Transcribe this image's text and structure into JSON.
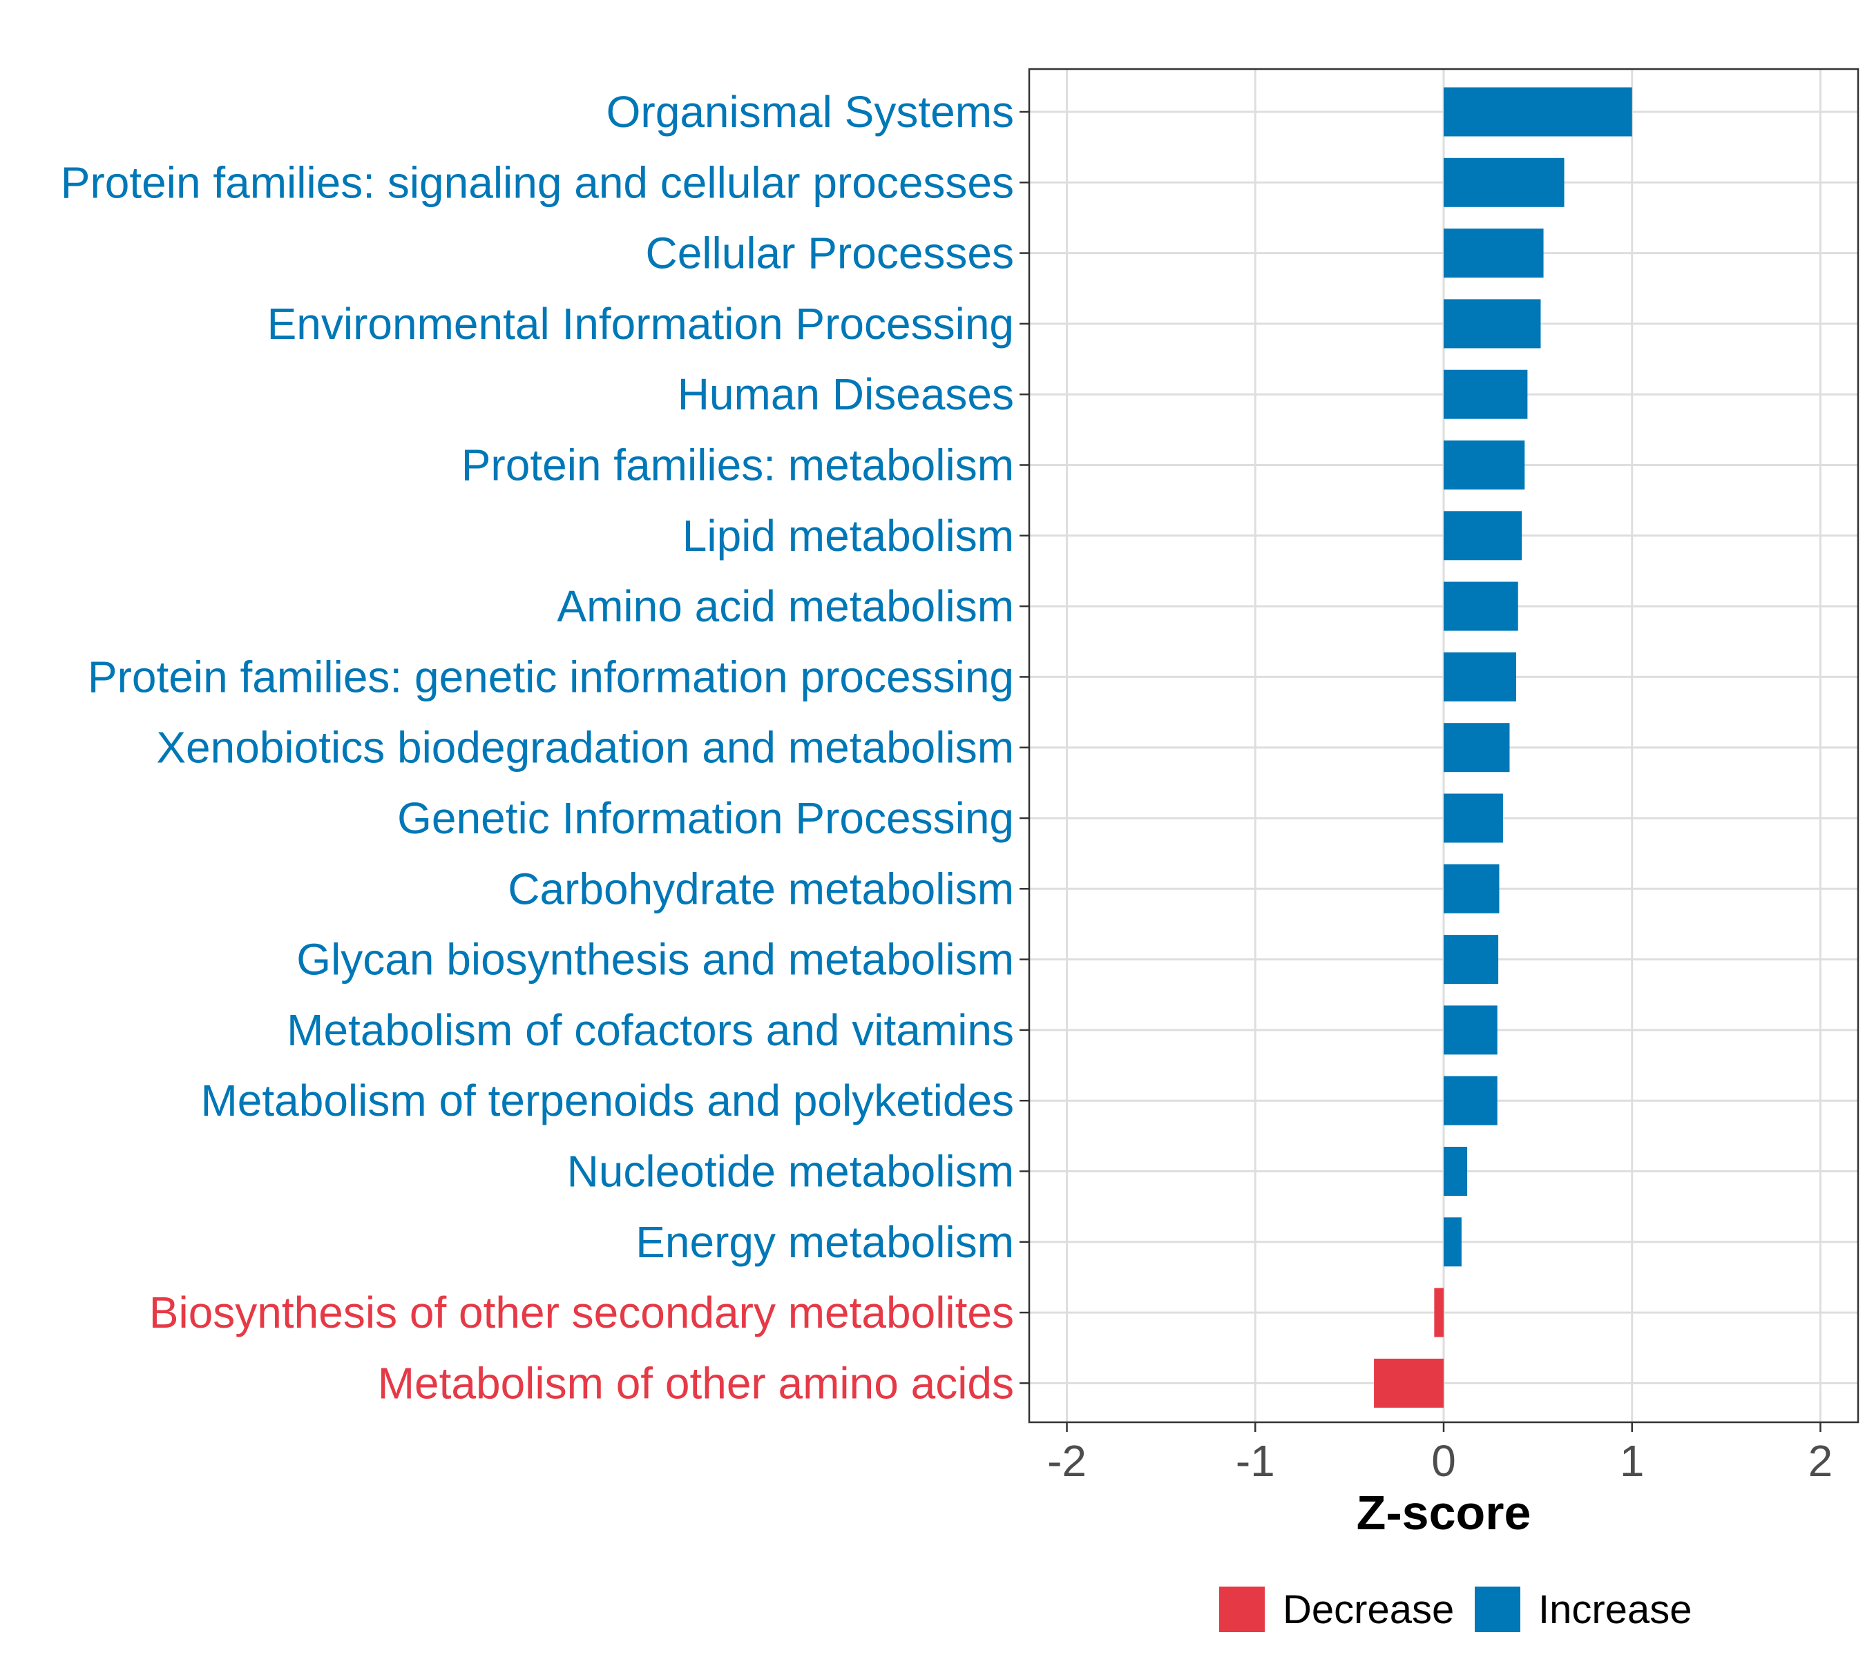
{
  "chart_data": {
    "type": "bar",
    "orientation": "horizontal",
    "categories": [
      "Organismal Systems",
      "Protein families: signaling and cellular processes",
      "Cellular Processes",
      "Environmental Information Processing",
      "Human Diseases",
      "Protein families: metabolism",
      "Lipid metabolism",
      "Amino acid metabolism",
      "Protein families: genetic information processing",
      "Xenobiotics biodegradation and metabolism",
      "Genetic Information Processing",
      "Carbohydrate metabolism",
      "Glycan biosynthesis and metabolism",
      "Metabolism of cofactors and vitamins",
      "Metabolism of terpenoids and polyketides",
      "Nucleotide metabolism",
      "Energy metabolism",
      "Biosynthesis of other secondary metabolites",
      "Metabolism of other amino acids"
    ],
    "values": [
      1.0,
      0.64,
      0.53,
      0.515,
      0.445,
      0.43,
      0.415,
      0.395,
      0.385,
      0.35,
      0.315,
      0.295,
      0.29,
      0.285,
      0.285,
      0.125,
      0.095,
      -0.05,
      -0.37
    ],
    "groups": [
      "Increase",
      "Increase",
      "Increase",
      "Increase",
      "Increase",
      "Increase",
      "Increase",
      "Increase",
      "Increase",
      "Increase",
      "Increase",
      "Increase",
      "Increase",
      "Increase",
      "Increase",
      "Increase",
      "Increase",
      "Decrease",
      "Decrease"
    ],
    "xlabel": "Z-score",
    "ylabel": "",
    "xlim": [
      -2.2,
      2.2
    ],
    "xticks": [
      -2,
      -1,
      0,
      1,
      2
    ],
    "xtick_labels": [
      "-2",
      "-1",
      "0",
      "1",
      "2"
    ],
    "grid": true,
    "legend": {
      "placement": "bottom",
      "entries": [
        {
          "label": "Decrease",
          "color": "#E63946"
        },
        {
          "label": "Increase",
          "color": "#0077B6"
        }
      ]
    },
    "colors": {
      "Decrease": "#E63946",
      "Increase": "#0077B6"
    }
  }
}
